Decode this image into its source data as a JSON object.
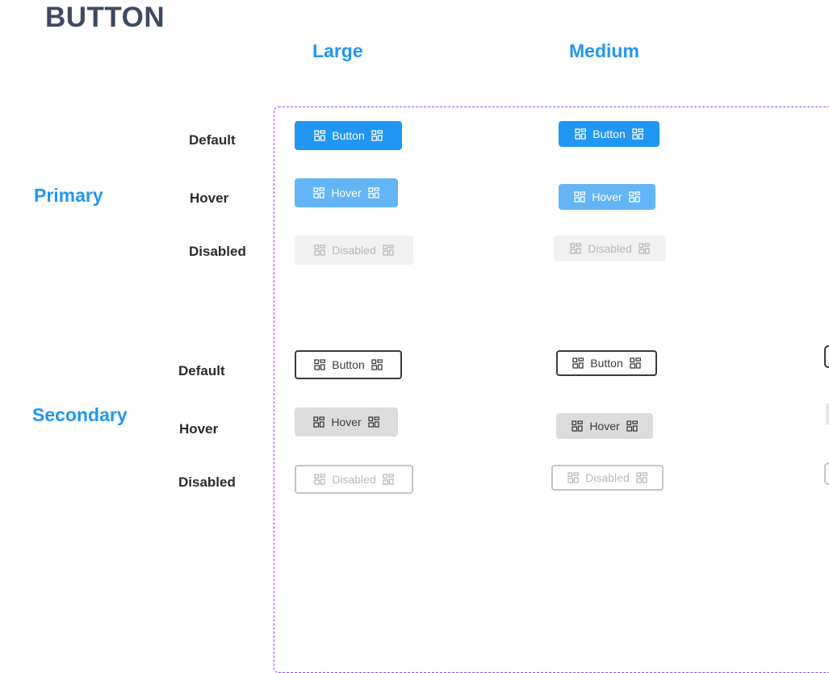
{
  "title": "BUTTON",
  "columns": {
    "large": "Large",
    "medium": "Medium"
  },
  "groups": {
    "primary": "Primary",
    "secondary": "Secondary"
  },
  "states": {
    "default": "Default",
    "hover": "Hover",
    "disabled": "Disabled"
  },
  "buttons": {
    "default": "Button",
    "hover": "Hover",
    "disabled": "Disabled"
  },
  "icon": "grid-layout-icon",
  "colors": {
    "accent": "#2196f3",
    "hover": "#64b5f6",
    "frame": "#9747ff",
    "title": "#3d4a63"
  }
}
